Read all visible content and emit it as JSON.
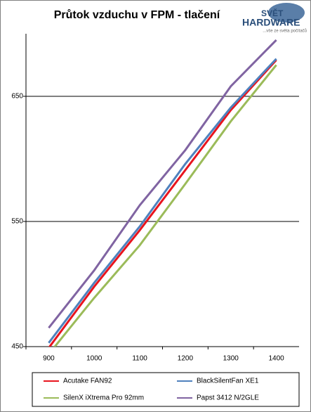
{
  "chart_data": {
    "type": "line",
    "title": "Průtok vzduchu v FPM - tlačení",
    "logo": {
      "top": "SVĚT",
      "bottom": "HARDWARE",
      "tagline": "...vše ze světa počítačů"
    },
    "categories": [
      900,
      1000,
      1100,
      1200,
      1300,
      1400
    ],
    "series": [
      {
        "name": "Acutake FAN92",
        "color": "#e8141e",
        "values": [
          449,
          498,
          543,
          591,
          639,
          679
        ]
      },
      {
        "name": "BlackSilentFan XE1",
        "color": "#4f81bd",
        "values": [
          453,
          501,
          546,
          596,
          641,
          680
        ]
      },
      {
        "name": "SilenX iXtrema Pro 92mm",
        "color": "#9bbb59",
        "values": [
          444,
          489,
          531,
          580,
          630,
          675
        ]
      },
      {
        "name": "Papst 3412 N/2GLE",
        "color": "#8064a2",
        "values": [
          465,
          511,
          563,
          607,
          658,
          695
        ]
      }
    ],
    "ylim": [
      450,
      700
    ],
    "yticks": [
      450,
      550,
      650
    ],
    "grid": true
  }
}
